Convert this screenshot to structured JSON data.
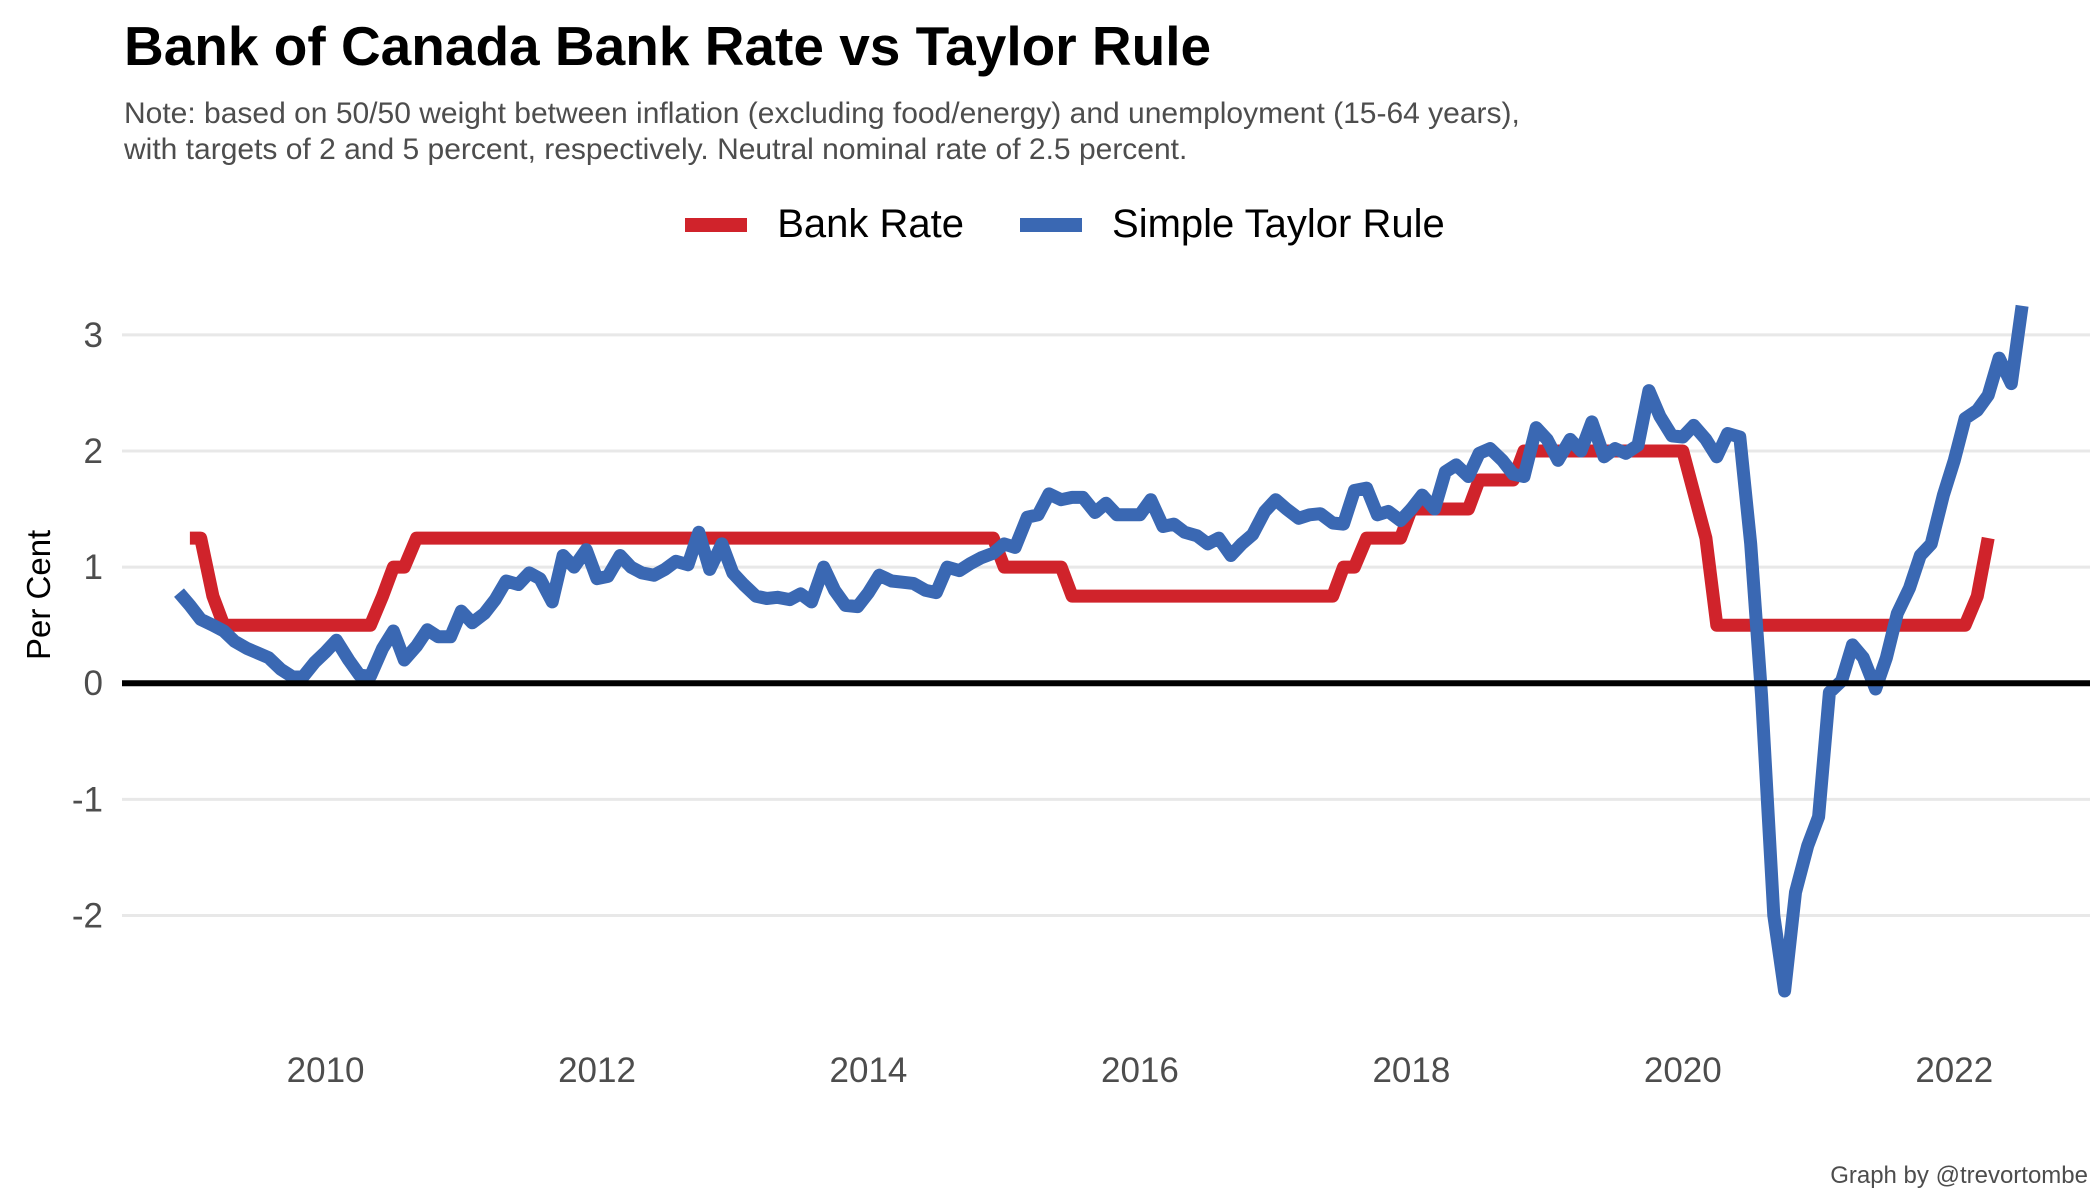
{
  "title": "Bank of Canada Bank Rate vs Taylor Rule",
  "subtitle_lines": [
    "Note: based on 50/50 weight between inflation (excluding food/energy) and unemployment (15-64 years),",
    "with targets of 2 and 5 percent, respectively. Neutral nominal rate of 2.5 percent."
  ],
  "caption": "Graph by @trevortombe",
  "colors": {
    "bank_rate": "#d0232b",
    "taylor_rule": "#3a68b3",
    "gridline": "#e8e8e8",
    "zero_line": "#000000"
  },
  "chart_data": {
    "type": "line",
    "title": "Bank of Canada Bank Rate vs Taylor Rule",
    "xlabel": "",
    "ylabel": "Per Cent",
    "xlim": [
      2008.5,
      2023.0
    ],
    "ylim": [
      -2.9,
      3.3
    ],
    "x_ticks": [
      2010,
      2012,
      2014,
      2016,
      2018,
      2020,
      2022
    ],
    "y_ticks": [
      3,
      2,
      1,
      0,
      -1,
      -2
    ],
    "grid": "horizontal",
    "legend_position": "top",
    "series": [
      {
        "name": "Bank Rate",
        "color": "#d0232b",
        "points": [
          [
            2009.0,
            1.25
          ],
          [
            2009.08,
            1.25
          ],
          [
            2009.17,
            0.75
          ],
          [
            2009.25,
            0.5
          ],
          [
            2010.33,
            0.5
          ],
          [
            2010.42,
            0.75
          ],
          [
            2010.5,
            1.0
          ],
          [
            2010.58,
            1.0
          ],
          [
            2010.67,
            1.25
          ],
          [
            2014.92,
            1.25
          ],
          [
            2015.0,
            1.0
          ],
          [
            2015.42,
            1.0
          ],
          [
            2015.5,
            0.75
          ],
          [
            2017.42,
            0.75
          ],
          [
            2017.5,
            1.0
          ],
          [
            2017.58,
            1.0
          ],
          [
            2017.67,
            1.25
          ],
          [
            2017.92,
            1.25
          ],
          [
            2018.0,
            1.5
          ],
          [
            2018.42,
            1.5
          ],
          [
            2018.5,
            1.75
          ],
          [
            2018.75,
            1.75
          ],
          [
            2018.83,
            2.0
          ],
          [
            2020.0,
            2.0
          ],
          [
            2020.17,
            1.25
          ],
          [
            2020.25,
            0.5
          ],
          [
            2022.08,
            0.5
          ],
          [
            2022.17,
            0.75
          ],
          [
            2022.25,
            1.25
          ]
        ]
      },
      {
        "name": "Simple Taylor Rule",
        "color": "#3a68b3",
        "points": [
          [
            2008.92,
            0.78
          ],
          [
            2009.0,
            0.67
          ],
          [
            2009.08,
            0.55
          ],
          [
            2009.17,
            0.5
          ],
          [
            2009.25,
            0.45
          ],
          [
            2009.33,
            0.36
          ],
          [
            2009.42,
            0.3
          ],
          [
            2009.5,
            0.26
          ],
          [
            2009.58,
            0.22
          ],
          [
            2009.67,
            0.12
          ],
          [
            2009.75,
            0.06
          ],
          [
            2009.83,
            0.05
          ],
          [
            2009.92,
            0.18
          ],
          [
            2010.0,
            0.27
          ],
          [
            2010.08,
            0.37
          ],
          [
            2010.17,
            0.2
          ],
          [
            2010.25,
            0.07
          ],
          [
            2010.33,
            0.06
          ],
          [
            2010.42,
            0.3
          ],
          [
            2010.5,
            0.45
          ],
          [
            2010.58,
            0.2
          ],
          [
            2010.67,
            0.32
          ],
          [
            2010.75,
            0.46
          ],
          [
            2010.83,
            0.4
          ],
          [
            2010.92,
            0.4
          ],
          [
            2011.0,
            0.62
          ],
          [
            2011.08,
            0.52
          ],
          [
            2011.17,
            0.6
          ],
          [
            2011.25,
            0.72
          ],
          [
            2011.33,
            0.88
          ],
          [
            2011.42,
            0.85
          ],
          [
            2011.5,
            0.95
          ],
          [
            2011.58,
            0.9
          ],
          [
            2011.67,
            0.7
          ],
          [
            2011.75,
            1.1
          ],
          [
            2011.83,
            1.0
          ],
          [
            2011.92,
            1.15
          ],
          [
            2012.0,
            0.9
          ],
          [
            2012.08,
            0.92
          ],
          [
            2012.17,
            1.1
          ],
          [
            2012.25,
            1.0
          ],
          [
            2012.33,
            0.95
          ],
          [
            2012.42,
            0.93
          ],
          [
            2012.5,
            0.98
          ],
          [
            2012.58,
            1.05
          ],
          [
            2012.67,
            1.02
          ],
          [
            2012.75,
            1.3
          ],
          [
            2012.83,
            0.98
          ],
          [
            2012.92,
            1.2
          ],
          [
            2013.0,
            0.95
          ],
          [
            2013.08,
            0.85
          ],
          [
            2013.17,
            0.75
          ],
          [
            2013.25,
            0.73
          ],
          [
            2013.33,
            0.74
          ],
          [
            2013.42,
            0.72
          ],
          [
            2013.5,
            0.77
          ],
          [
            2013.58,
            0.7
          ],
          [
            2013.67,
            1.0
          ],
          [
            2013.75,
            0.8
          ],
          [
            2013.83,
            0.67
          ],
          [
            2013.92,
            0.66
          ],
          [
            2014.0,
            0.78
          ],
          [
            2014.08,
            0.93
          ],
          [
            2014.17,
            0.88
          ],
          [
            2014.25,
            0.87
          ],
          [
            2014.33,
            0.86
          ],
          [
            2014.42,
            0.8
          ],
          [
            2014.5,
            0.78
          ],
          [
            2014.58,
            1.0
          ],
          [
            2014.67,
            0.97
          ],
          [
            2014.75,
            1.03
          ],
          [
            2014.83,
            1.08
          ],
          [
            2014.92,
            1.12
          ],
          [
            2015.0,
            1.2
          ],
          [
            2015.08,
            1.17
          ],
          [
            2015.17,
            1.43
          ],
          [
            2015.25,
            1.45
          ],
          [
            2015.33,
            1.63
          ],
          [
            2015.42,
            1.58
          ],
          [
            2015.5,
            1.6
          ],
          [
            2015.58,
            1.6
          ],
          [
            2015.67,
            1.47
          ],
          [
            2015.75,
            1.55
          ],
          [
            2015.83,
            1.45
          ],
          [
            2015.92,
            1.45
          ],
          [
            2016.0,
            1.45
          ],
          [
            2016.08,
            1.58
          ],
          [
            2016.17,
            1.35
          ],
          [
            2016.25,
            1.37
          ],
          [
            2016.33,
            1.3
          ],
          [
            2016.42,
            1.27
          ],
          [
            2016.5,
            1.2
          ],
          [
            2016.58,
            1.25
          ],
          [
            2016.67,
            1.1
          ],
          [
            2016.75,
            1.2
          ],
          [
            2016.83,
            1.28
          ],
          [
            2016.92,
            1.48
          ],
          [
            2017.0,
            1.58
          ],
          [
            2017.08,
            1.5
          ],
          [
            2017.17,
            1.42
          ],
          [
            2017.25,
            1.45
          ],
          [
            2017.33,
            1.46
          ],
          [
            2017.42,
            1.38
          ],
          [
            2017.5,
            1.37
          ],
          [
            2017.58,
            1.66
          ],
          [
            2017.67,
            1.68
          ],
          [
            2017.75,
            1.45
          ],
          [
            2017.83,
            1.48
          ],
          [
            2017.92,
            1.4
          ],
          [
            2018.0,
            1.5
          ],
          [
            2018.08,
            1.62
          ],
          [
            2018.17,
            1.5
          ],
          [
            2018.25,
            1.82
          ],
          [
            2018.33,
            1.88
          ],
          [
            2018.42,
            1.78
          ],
          [
            2018.5,
            1.98
          ],
          [
            2018.58,
            2.02
          ],
          [
            2018.67,
            1.92
          ],
          [
            2018.75,
            1.8
          ],
          [
            2018.83,
            1.78
          ],
          [
            2018.92,
            2.2
          ],
          [
            2019.0,
            2.1
          ],
          [
            2019.08,
            1.92
          ],
          [
            2019.17,
            2.1
          ],
          [
            2019.25,
            2.0
          ],
          [
            2019.33,
            2.25
          ],
          [
            2019.42,
            1.95
          ],
          [
            2019.5,
            2.02
          ],
          [
            2019.58,
            1.98
          ],
          [
            2019.67,
            2.05
          ],
          [
            2019.75,
            2.52
          ],
          [
            2019.83,
            2.3
          ],
          [
            2019.92,
            2.13
          ],
          [
            2020.0,
            2.12
          ],
          [
            2020.08,
            2.22
          ],
          [
            2020.17,
            2.1
          ],
          [
            2020.25,
            1.95
          ],
          [
            2020.33,
            2.15
          ],
          [
            2020.42,
            2.12
          ],
          [
            2020.5,
            1.2
          ],
          [
            2020.58,
            -0.1
          ],
          [
            2020.67,
            -2.0
          ],
          [
            2020.75,
            -2.65
          ],
          [
            2020.83,
            -1.8
          ],
          [
            2020.92,
            -1.4
          ],
          [
            2021.0,
            -1.15
          ],
          [
            2021.08,
            -0.08
          ],
          [
            2021.17,
            0.02
          ],
          [
            2021.25,
            0.33
          ],
          [
            2021.33,
            0.22
          ],
          [
            2021.42,
            -0.05
          ],
          [
            2021.5,
            0.22
          ],
          [
            2021.58,
            0.6
          ],
          [
            2021.67,
            0.82
          ],
          [
            2021.75,
            1.1
          ],
          [
            2021.83,
            1.2
          ],
          [
            2021.92,
            1.62
          ],
          [
            2022.0,
            1.92
          ],
          [
            2022.08,
            2.28
          ],
          [
            2022.17,
            2.35
          ],
          [
            2022.25,
            2.48
          ],
          [
            2022.33,
            2.8
          ],
          [
            2022.42,
            2.58
          ],
          [
            2022.5,
            3.25
          ]
        ]
      }
    ]
  }
}
